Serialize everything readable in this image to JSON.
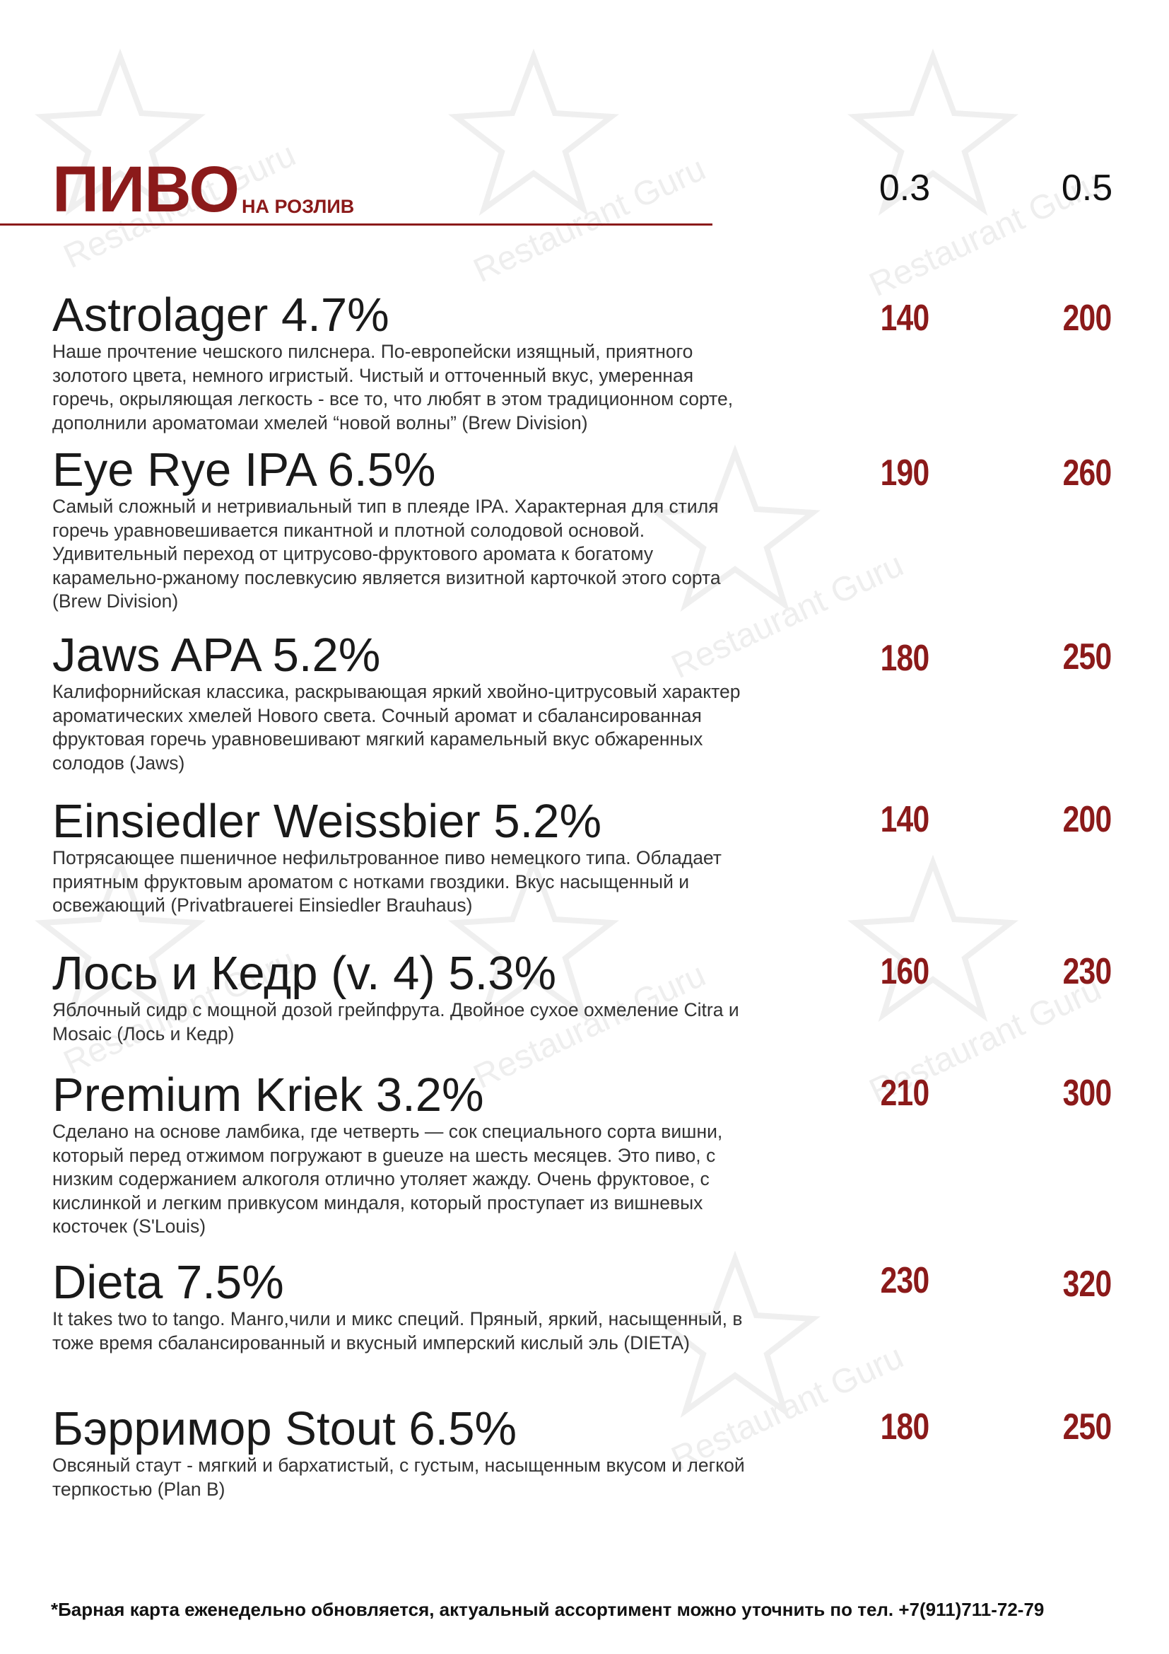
{
  "header": {
    "title": "ПИВО",
    "subtitle": "НА РОЗЛИВ",
    "sizes": [
      "0.3",
      "0.5"
    ]
  },
  "items": [
    {
      "name": "Astrolager 4.7%",
      "desc": "Наше прочтение чешского пилснера. По-европейски изящный, приятного золотого цвета, немного игристый. Чистый и отточенный вкус, умеренная горечь, окрыляющая легкость - все то, что любят в этом традиционном сорте, дополнили ароматомаи хмелей “новой волны” (Brew Division)",
      "price_small": "140",
      "price_large": "200"
    },
    {
      "name": "Eye Rye IPA 6.5%",
      "desc": "Самый сложный и нетривиальный тип в плеяде IPA. Характерная для стиля горечь уравновешивается пикантной и плотной солодовой основой. Удивительный переход от цитрусово-фруктового аромата к богатому карамельно-ржаному послевкусию является визитной карточкой этого сорта (Brew Division)",
      "price_small": "190",
      "price_large": "260"
    },
    {
      "name": "Jaws APA 5.2%",
      "desc": "Калифорнийская классика, раскрывающая яркий хвойно-цитрусовый характер ароматических хмелей Нового света. Сочный аромат и сбалансированная фруктовая горечь уравновешивают мягкий карамельный вкус обжаренных солодов (Jaws)",
      "price_small": "180",
      "price_large": "250"
    },
    {
      "name": "Einsiedler Weissbier 5.2%",
      "desc": "Потрясающее пшеничное нефильтрованное пиво немецкого типа. Обладает приятным фруктовым ароматом с нотками гвоздики. Вкус насыщенный и освежающий (Privatbrauerei Einsiedler Brauhaus)",
      "price_small": "140",
      "price_large": "200"
    },
    {
      "name": "Лось и Кедр (v. 4) 5.3%",
      "desc": "Яблочный сидр с мощной дозой грейпфрута. Двойное сухое охмеление Citra и Mosaic (Лось и Кедр)",
      "price_small": "160",
      "price_large": "230"
    },
    {
      "name": "Premium Kriek 3.2%",
      "desc": "Сделано на основе ламбика, где четверть — сок специального сорта вишни, который перед отжимом погружают в gueuze на шесть месяцев. Это пиво, с низким содержанием алкоголя отлично утоляет жажду. Очень фруктовое, с кислинкой и легким привкусом миндаля, который проступает из вишневых косточек (S'Louis)",
      "price_small": "210",
      "price_large": "300"
    },
    {
      "name": "Dieta 7.5%",
      "desc": "It takes two to tango. Манго,чили и микс специй. Пряный, яркий, насыщенный, в тоже время сбалансированный и вкусный имперский кислый эль (DIETA)",
      "price_small": "230",
      "price_large": "320"
    },
    {
      "name": "Бэрримор Stout 6.5%",
      "desc": "Овсяный стаут - мягкий и бархатистый, с густым, насыщенным вкусом и легкой терпкостью (Plan B)",
      "price_small": "180",
      "price_large": "250"
    }
  ],
  "footer": "*Барная карта еженедельно обновляется, актуальный ассортимент можно уточнить по тел. +7(911)711-72-79",
  "watermark_text": "Restaurant Guru",
  "colors": {
    "accent": "#8b1a1a",
    "text": "#1a1a1a",
    "body_text": "#333333"
  }
}
